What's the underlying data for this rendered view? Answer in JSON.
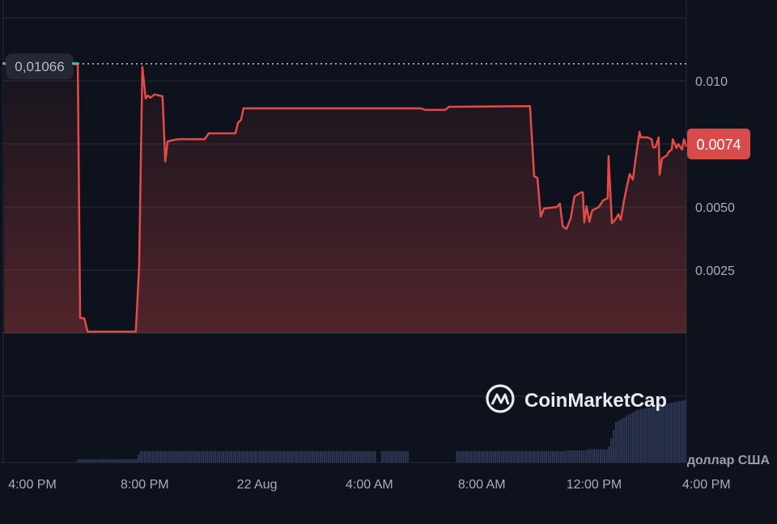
{
  "chart_data": {
    "type": "line",
    "title": "",
    "xlabel": "",
    "ylabel": "",
    "currency_label": "доллар США",
    "watermark": "CoinMarketCap",
    "x_ticks": [
      {
        "label": "4:00 PM",
        "t": "21 16:00"
      },
      {
        "label": "8:00 PM",
        "t": "21 20:00"
      },
      {
        "label": "22 Aug",
        "t": "22 00:00"
      },
      {
        "label": "4:00 AM",
        "t": "22 04:00"
      },
      {
        "label": "8:00 AM",
        "t": "22 08:00"
      },
      {
        "label": "12:00 PM",
        "t": "22 12:00"
      },
      {
        "label": "4:00 PM",
        "t": "22 16:00"
      }
    ],
    "y_ticks": [
      {
        "label": "0.010",
        "v": 0.01
      },
      {
        "label": "0.0050",
        "v": 0.005
      },
      {
        "label": "0.0025",
        "v": 0.0025
      }
    ],
    "y_gridlines": [
      0.0125,
      0.01,
      0.0075,
      0.005,
      0.0025,
      0,
      -0.0025
    ],
    "ylim": [
      -0.0025,
      0.0125
    ],
    "xlim": [
      "21 15:00",
      "22 15:17"
    ],
    "grid": true,
    "reference_line": {
      "label": "0,01066",
      "value": 0.01066,
      "style": "dotted"
    },
    "current_price": {
      "label": "0.0074",
      "value": 0.0074
    },
    "colors": {
      "line": "#e34b4b",
      "start_marker": "#3fbf7f",
      "price_badge": "#d94a4a",
      "volume": "#2f3756",
      "background": "#0e121c"
    },
    "series": [
      {
        "points": [
          [
            "21 15:00",
            0.01066
          ],
          [
            "21 17:37",
            0.01066
          ],
          [
            "21 17:42",
            0.00061
          ],
          [
            "21 17:51",
            0.00058
          ],
          [
            "21 17:58",
            6e-05
          ],
          [
            "21 19:41",
            6e-05
          ],
          [
            "21 19:48",
            0.00263
          ],
          [
            "21 19:55",
            0.01055
          ],
          [
            "21 20:02",
            0.0093
          ],
          [
            "21 20:07",
            0.00942
          ],
          [
            "21 20:12",
            0.00933
          ],
          [
            "21 20:21",
            0.00946
          ],
          [
            "21 20:38",
            0.00939
          ],
          [
            "21 20:44",
            0.0068
          ],
          [
            "21 20:49",
            0.0076
          ],
          [
            "21 21:03",
            0.00766
          ],
          [
            "21 21:11",
            0.00769
          ],
          [
            "21 22:08",
            0.00769
          ],
          [
            "21 22:17",
            0.00792
          ],
          [
            "21 23:14",
            0.00792
          ],
          [
            "21 23:19",
            0.00833
          ],
          [
            "21 23:26",
            0.00846
          ],
          [
            "21 23:31",
            0.00891
          ],
          [
            "22 05:50",
            0.00891
          ],
          [
            "22 05:59",
            0.00885
          ],
          [
            "22 06:42",
            0.00885
          ],
          [
            "22 06:50",
            0.00897
          ],
          [
            "22 09:43",
            0.009
          ],
          [
            "22 09:52",
            0.00622
          ],
          [
            "22 09:59",
            0.00615
          ],
          [
            "22 10:06",
            0.00462
          ],
          [
            "22 10:13",
            0.00494
          ],
          [
            "22 10:27",
            0.00497
          ],
          [
            "22 10:40",
            0.005
          ],
          [
            "22 10:47",
            0.00513
          ],
          [
            "22 10:53",
            0.00423
          ],
          [
            "22 11:01",
            0.00413
          ],
          [
            "22 11:10",
            0.00455
          ],
          [
            "22 11:18",
            0.00542
          ],
          [
            "22 11:32",
            0.00558
          ],
          [
            "22 11:36",
            0.00558
          ],
          [
            "22 11:39",
            0.00439
          ],
          [
            "22 11:44",
            0.00503
          ],
          [
            "22 11:50",
            0.00442
          ],
          [
            "22 11:56",
            0.00487
          ],
          [
            "22 12:10",
            0.005
          ],
          [
            "22 12:19",
            0.00526
          ],
          [
            "22 12:29",
            0.00535
          ],
          [
            "22 12:31",
            0.00702
          ],
          [
            "22 12:38",
            0.00436
          ],
          [
            "22 12:45",
            0.00449
          ],
          [
            "22 12:52",
            0.00471
          ],
          [
            "22 12:57",
            0.00449
          ],
          [
            "22 13:04",
            0.00526
          ],
          [
            "22 13:11",
            0.0059
          ],
          [
            "22 13:16",
            0.00631
          ],
          [
            "22 13:23",
            0.00609
          ],
          [
            "22 13:28",
            0.0068
          ],
          [
            "22 13:37",
            0.00798
          ],
          [
            "22 13:40",
            0.00776
          ],
          [
            "22 13:54",
            0.00776
          ],
          [
            "22 14:03",
            0.00769
          ],
          [
            "22 14:06",
            0.00737
          ],
          [
            "22 14:11",
            0.00737
          ],
          [
            "22 14:18",
            0.00776
          ],
          [
            "22 14:20",
            0.00628
          ],
          [
            "22 14:25",
            0.00692
          ],
          [
            "22 14:36",
            0.00705
          ],
          [
            "22 14:39",
            0.00718
          ],
          [
            "22 14:46",
            0.00728
          ],
          [
            "22 14:48",
            0.00769
          ],
          [
            "22 14:56",
            0.00734
          ],
          [
            "22 15:00",
            0.0075
          ],
          [
            "22 15:08",
            0.00728
          ],
          [
            "22 15:12",
            0.00769
          ],
          [
            "22 15:17",
            0.0074
          ]
        ]
      }
    ],
    "volume": [
      [
        "21 17:35",
        0.08
      ],
      [
        "21 18:00",
        0.08
      ],
      [
        "21 19:40",
        0.08
      ],
      [
        "21 19:45",
        0.2
      ],
      [
        "21 19:50",
        0.28
      ],
      [
        "22 04:10",
        0.28
      ],
      [
        "22 04:15",
        0
      ],
      [
        "22 04:25",
        0.28
      ],
      [
        "22 05:20",
        0.28
      ],
      [
        "22 05:25",
        0
      ],
      [
        "22 07:00",
        0
      ],
      [
        "22 07:05",
        0.28
      ],
      [
        "22 11:00",
        0.3
      ],
      [
        "22 11:45",
        0.33
      ],
      [
        "22 12:30",
        0.4
      ],
      [
        "22 12:45",
        1.0
      ],
      [
        "22 13:30",
        1.3
      ],
      [
        "22 14:30",
        1.45
      ],
      [
        "22 15:17",
        1.55
      ]
    ]
  }
}
